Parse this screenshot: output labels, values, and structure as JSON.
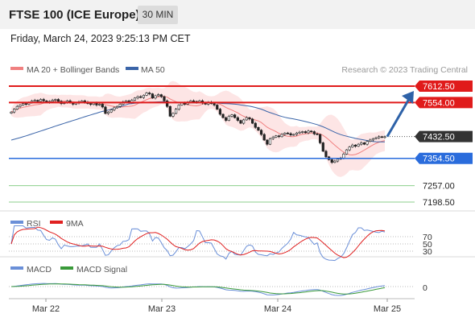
{
  "header": {
    "title": "FTSE 100 (ICE Europe)",
    "timeframe": "30 MIN"
  },
  "timestamp": "Friday, March 24, 2023 9:25:13 PM CET",
  "legend": {
    "ma20_label": "MA 20 + Bollinger Bands",
    "ma50_label": "MA 50",
    "credit": "Research © 2023 Trading Central"
  },
  "colors": {
    "resistance": "#e01b1b",
    "support": "#2a6cdc",
    "target": "#8ccf8c",
    "arrow": "#2e62a8",
    "bullish": "#ffffff",
    "bearish": "#222222",
    "ma20": "#f08080",
    "ma50": "#3a64a8",
    "bollinger_fill": "#fde0e0",
    "rsi": "#6a8fd8",
    "rsi_ma": "#e02020",
    "macd": "#6a8fd8",
    "macd_signal": "#3a9a3a"
  },
  "chart_data": {
    "type": "candlestick",
    "price_levels": [
      {
        "label": "7612.50",
        "value": 7612.5,
        "kind": "resistance"
      },
      {
        "label": "7554.00",
        "value": 7554.0,
        "kind": "resistance"
      },
      {
        "label": "7432.50",
        "value": 7432.5,
        "kind": "last"
      },
      {
        "label": "7354.50",
        "value": 7354.5,
        "kind": "support"
      },
      {
        "label": "7257.00",
        "value": 7257.0,
        "kind": "target"
      },
      {
        "label": "7198.50",
        "value": 7198.5,
        "kind": "target"
      }
    ],
    "ylim": [
      7125,
      7700
    ],
    "x_ticks": [
      "Mar 22",
      "Mar 23",
      "Mar 24",
      "Mar 25"
    ],
    "close": [
      7520,
      7530,
      7540,
      7545,
      7550,
      7548,
      7555,
      7560,
      7562,
      7558,
      7565,
      7560,
      7555,
      7558,
      7562,
      7565,
      7558,
      7550,
      7555,
      7560,
      7553,
      7548,
      7552,
      7556,
      7560,
      7555,
      7550,
      7547,
      7552,
      7545,
      7548,
      7538,
      7515,
      7520,
      7528,
      7535,
      7540,
      7548,
      7556,
      7560,
      7555,
      7562,
      7570,
      7575,
      7572,
      7580,
      7588,
      7585,
      7570,
      7578,
      7582,
      7575,
      7560,
      7540,
      7505,
      7515,
      7530,
      7545,
      7552,
      7548,
      7556,
      7560,
      7558,
      7555,
      7560,
      7552,
      7548,
      7555,
      7550,
      7545,
      7530,
      7512,
      7500,
      7490,
      7505,
      7510,
      7500,
      7490,
      7480,
      7492,
      7500,
      7495,
      7480,
      7465,
      7455,
      7440,
      7420,
      7405,
      7425,
      7430,
      7435,
      7432,
      7440,
      7445,
      7443,
      7438,
      7440,
      7445,
      7448,
      7450,
      7446,
      7452,
      7450,
      7442,
      7440,
      7410,
      7380,
      7360,
      7350,
      7340,
      7345,
      7352,
      7356,
      7370,
      7385,
      7395,
      7402,
      7398,
      7405,
      7410,
      7405,
      7415,
      7420,
      7425,
      7428,
      7432,
      7430,
      7432
    ],
    "bollinger_upper_ref": 7595,
    "ma50_start": 7420,
    "ma50_end": 7435,
    "projection": {
      "from": 7432.5,
      "to": 7612.5
    }
  },
  "rsi_panel": {
    "label": "RSI",
    "ma_label": "9MA",
    "levels": [
      "70",
      "50",
      "30"
    ]
  },
  "macd_panel": {
    "label": "MACD",
    "signal_label": "MACD Signal",
    "zero_label": "0"
  }
}
